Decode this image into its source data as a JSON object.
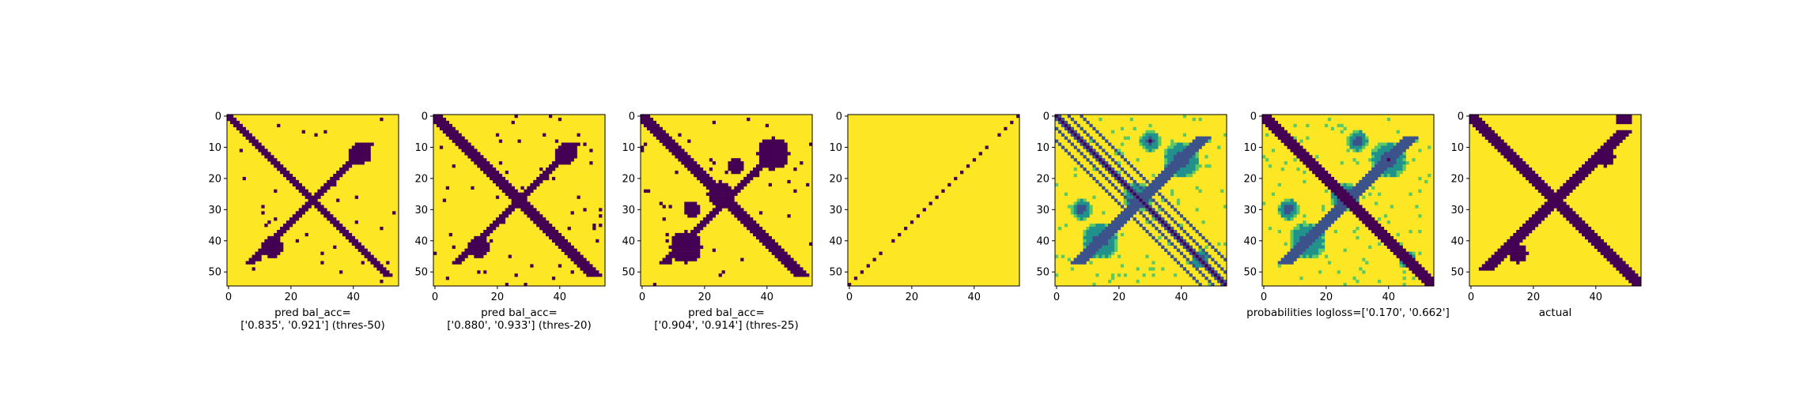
{
  "colors": {
    "dark": "#440154",
    "yellow": "#fde725",
    "teal": "#21918c",
    "blue": "#3b528b",
    "green": "#5ec962"
  },
  "chart_data": [
    {
      "type": "heatmap",
      "size": 55,
      "kind": "pred",
      "threshold": 50,
      "xticks": [
        0,
        20,
        40
      ],
      "yticks": [
        0,
        10,
        20,
        30,
        40,
        50
      ],
      "caption": [
        "pred bal_acc=",
        "['0.835', '0.921'] (thres-50)"
      ]
    },
    {
      "type": "heatmap",
      "size": 55,
      "kind": "pred",
      "threshold": 20,
      "xticks": [
        0,
        20,
        40
      ],
      "yticks": [
        0,
        10,
        20,
        30,
        40,
        50
      ],
      "caption": [
        "pred bal_acc=",
        "['0.880', '0.933'] (thres-20)"
      ]
    },
    {
      "type": "heatmap",
      "size": 55,
      "kind": "pred",
      "threshold": 25,
      "xticks": [
        0,
        20,
        40
      ],
      "yticks": [
        0,
        10,
        20,
        30,
        40,
        50
      ],
      "caption": [
        "pred bal_acc=",
        "['0.904', '0.914'] (thres-25)"
      ]
    },
    {
      "type": "heatmap",
      "size": 55,
      "kind": "sparse",
      "xticks": [
        0,
        20,
        40
      ],
      "yticks": [
        0,
        10,
        20,
        30,
        40,
        50
      ],
      "caption": []
    },
    {
      "type": "heatmap",
      "size": 55,
      "kind": "prob_a",
      "xticks": [
        0,
        20,
        40
      ],
      "yticks": [
        0,
        10,
        20,
        30,
        40,
        50
      ],
      "caption": []
    },
    {
      "type": "heatmap",
      "size": 55,
      "kind": "prob_b",
      "xticks": [
        0,
        20,
        40
      ],
      "yticks": [
        0,
        10,
        20,
        30,
        40,
        50
      ],
      "caption": [
        "probabilities logloss=['0.170', '0.662']"
      ]
    },
    {
      "type": "heatmap",
      "size": 55,
      "kind": "actual",
      "xticks": [
        0,
        20,
        40
      ],
      "yticks": [
        0,
        10,
        20,
        30,
        40,
        50
      ],
      "caption": [
        "actual"
      ]
    }
  ]
}
